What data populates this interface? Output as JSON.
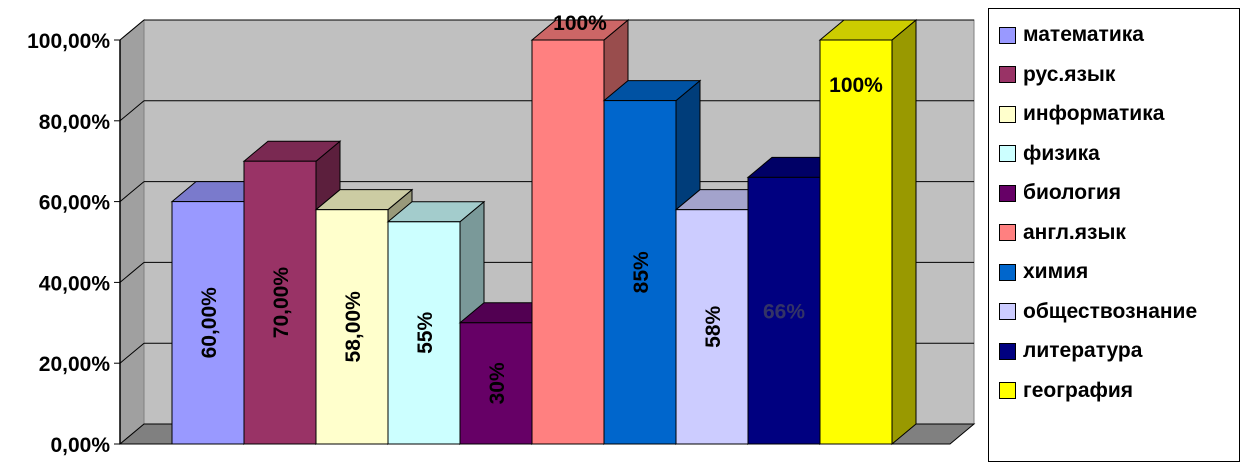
{
  "chart_data": {
    "type": "bar",
    "title": "",
    "xlabel": "",
    "ylabel": "",
    "ylim": [
      0,
      1
    ],
    "yticks": [
      "0,00%",
      "20,00%",
      "40,00%",
      "60,00%",
      "80,00%",
      "100,00%"
    ],
    "grid": true,
    "legend_position": "right",
    "categories": [
      "математика",
      "рус.язык",
      "информатика",
      "физика",
      "биология",
      "англ.язык",
      "химия",
      "обществознание",
      "литература",
      "география"
    ],
    "values": [
      0.6,
      0.7,
      0.58,
      0.55,
      0.3,
      1.0,
      0.85,
      0.58,
      0.66,
      1.0
    ],
    "data_labels": [
      "60,00%",
      "70,00%",
      "58,00%",
      "55%",
      "30%",
      "100%",
      "85%",
      "58%",
      "66%",
      "100%"
    ],
    "colors": [
      "#9999ff",
      "#993366",
      "#ffffcc",
      "#ccffff",
      "#660066",
      "#ff8080",
      "#0066cc",
      "#ccccff",
      "#000080",
      "#ffff00"
    ]
  }
}
